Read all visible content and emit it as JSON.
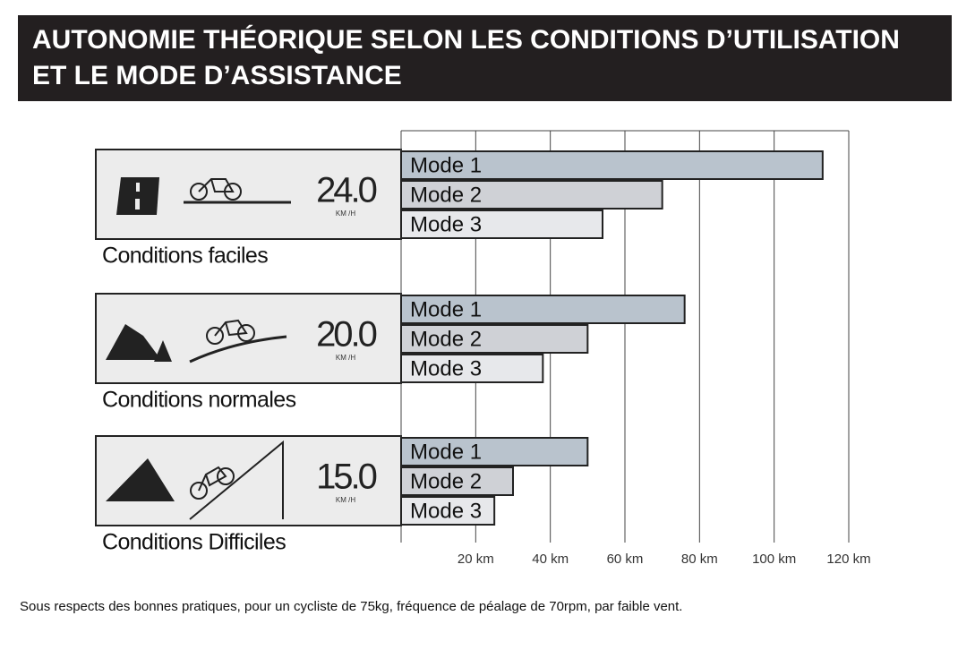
{
  "chart_data": {
    "type": "bar",
    "orientation": "horizontal",
    "title": [
      "AUTONOMIE THÉORIQUE SELON LES CONDITIONS D’UTILISATION",
      "ET LE MODE D’ASSISTANCE"
    ],
    "categories": [
      "Conditions faciles",
      "Conditions normales",
      "Conditions Difficiles"
    ],
    "speeds": [
      "24.0",
      "20.0",
      "15.0"
    ],
    "speed_unit": "KM /H",
    "series": [
      {
        "name": "Mode 1",
        "color": "#b9c3cd",
        "values": [
          113,
          76,
          50
        ]
      },
      {
        "name": "Mode 2",
        "color": "#cfd1d6",
        "values": [
          70,
          50,
          30
        ]
      },
      {
        "name": "Mode 3",
        "color": "#e7e8eb",
        "values": [
          54,
          38,
          25
        ]
      }
    ],
    "xlim": [
      0,
      120
    ],
    "xticks": [
      {
        "value": 20,
        "label": "20 km"
      },
      {
        "value": 40,
        "label": "40 km"
      },
      {
        "value": 60,
        "label": "60 km"
      },
      {
        "value": 80,
        "label": "80 km"
      },
      {
        "value": 100,
        "label": "100 km"
      },
      {
        "value": 120,
        "label": "120 km"
      }
    ],
    "grid": true
  },
  "footnote": "Sous respects des bonnes pratiques, pour un cycliste de 75kg, fréquence de péalage de 70rpm, par faible vent."
}
